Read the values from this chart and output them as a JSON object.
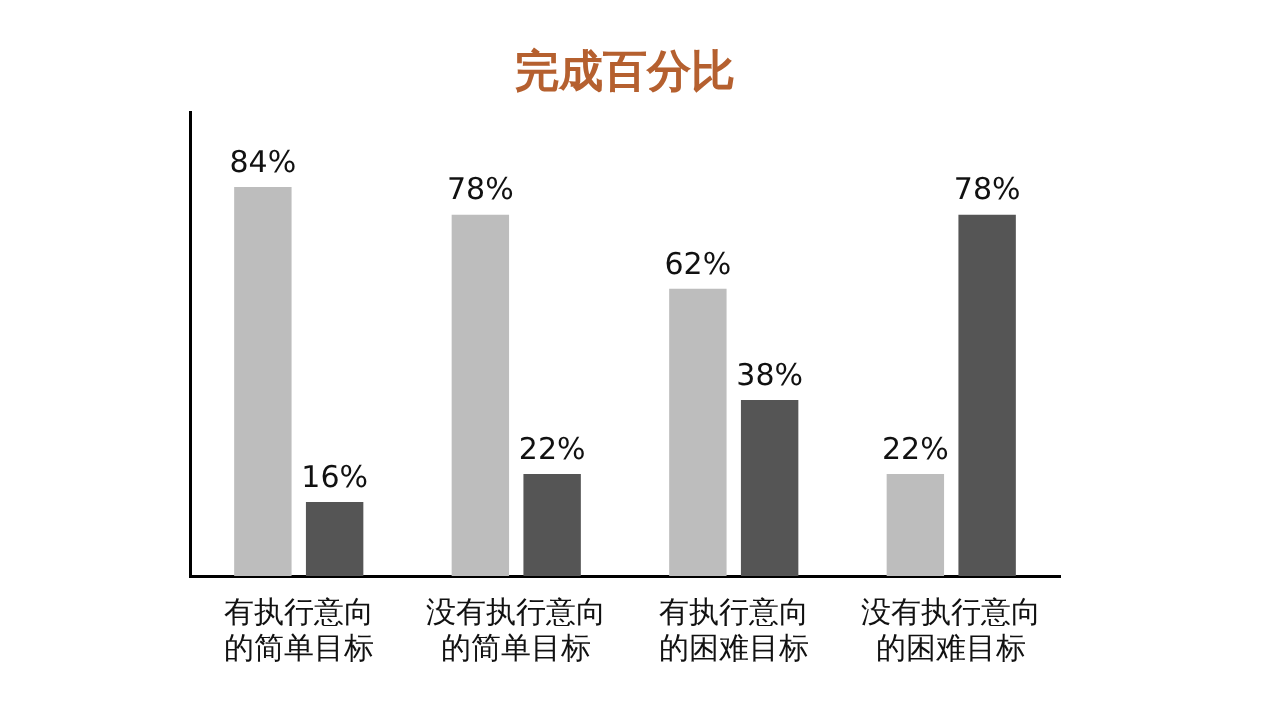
{
  "chart_data": {
    "type": "bar",
    "title": "完成百分比",
    "categories": [
      "有执行意向的简单目标",
      "没有执行意向的简单目标",
      "有执行意向的困难目标",
      "没有执行意向的困难目标"
    ],
    "series": [
      {
        "color": "#bdbdbd",
        "values": [
          84,
          78,
          62,
          22
        ],
        "value_labels": [
          "84%",
          "78%",
          "62%",
          "22%"
        ]
      },
      {
        "color": "#555555",
        "values": [
          16,
          22,
          38,
          78
        ],
        "value_labels": [
          "16%",
          "22%",
          "38%",
          "78%"
        ]
      }
    ],
    "ylim": [
      0,
      100
    ],
    "tick_labels": "x",
    "grid": false,
    "legend": false
  }
}
